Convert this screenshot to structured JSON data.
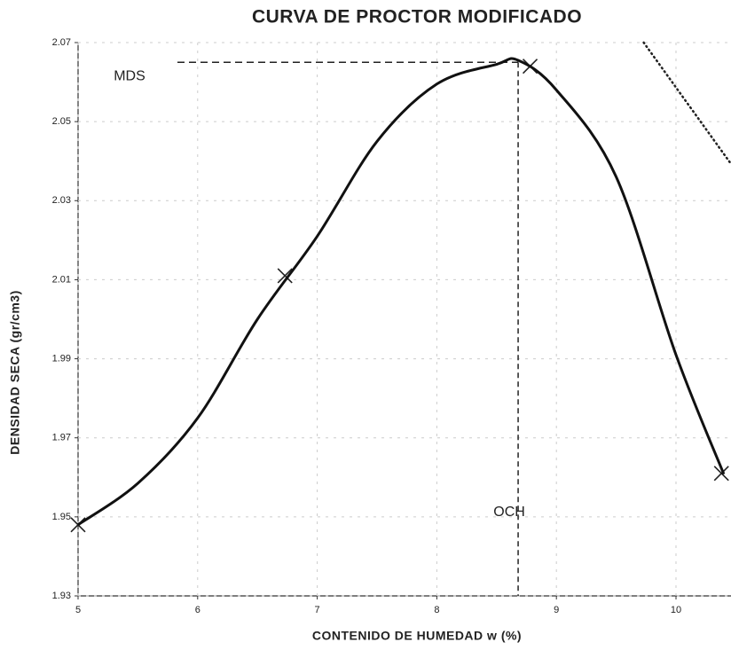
{
  "chart_data": {
    "type": "line",
    "title": "CURVA DE PROCTOR MODIFICADO",
    "x_label": "CONTENIDO DE HUMEDAD w (%)",
    "y_label": "DENSIDAD SECA (gr/cm3)",
    "xlim": [
      5,
      10.46
    ],
    "ylim": [
      1.93,
      2.07
    ],
    "xticks": [
      5,
      6,
      7,
      8,
      9,
      10
    ],
    "yticks": [
      1.93,
      1.95,
      1.97,
      1.99,
      2.01,
      2.03,
      2.05,
      2.07
    ],
    "grid": true,
    "series": [
      {
        "color": "#222222",
        "marker": "x",
        "line": "none",
        "x": [
          5,
          6.73,
          8.78,
          10.38
        ],
        "values": [
          1.948,
          2.011,
          2.064,
          1.961
        ]
      },
      {
        "color": "#111111",
        "marker": "none",
        "line": "solid",
        "x": [
          5,
          5.5,
          6,
          6.5,
          7,
          7.5,
          8,
          8.5,
          8.68,
          9,
          9.5,
          10,
          10.4
        ],
        "values": [
          1.948,
          1.9585,
          1.975,
          2.0,
          2.021,
          2.045,
          2.0595,
          2.0645,
          2.0655,
          2.058,
          2.036,
          1.991,
          1.9608
        ]
      },
      {
        "color": "#222222",
        "marker": "none",
        "line": "dotted",
        "x": [
          9.73,
          10.46
        ],
        "values": [
          2.07,
          2.0393
        ]
      }
    ],
    "annotations": [
      {
        "text": "MDS",
        "y": 2.065
      },
      {
        "text": "OCH",
        "x": 8.68
      }
    ]
  }
}
